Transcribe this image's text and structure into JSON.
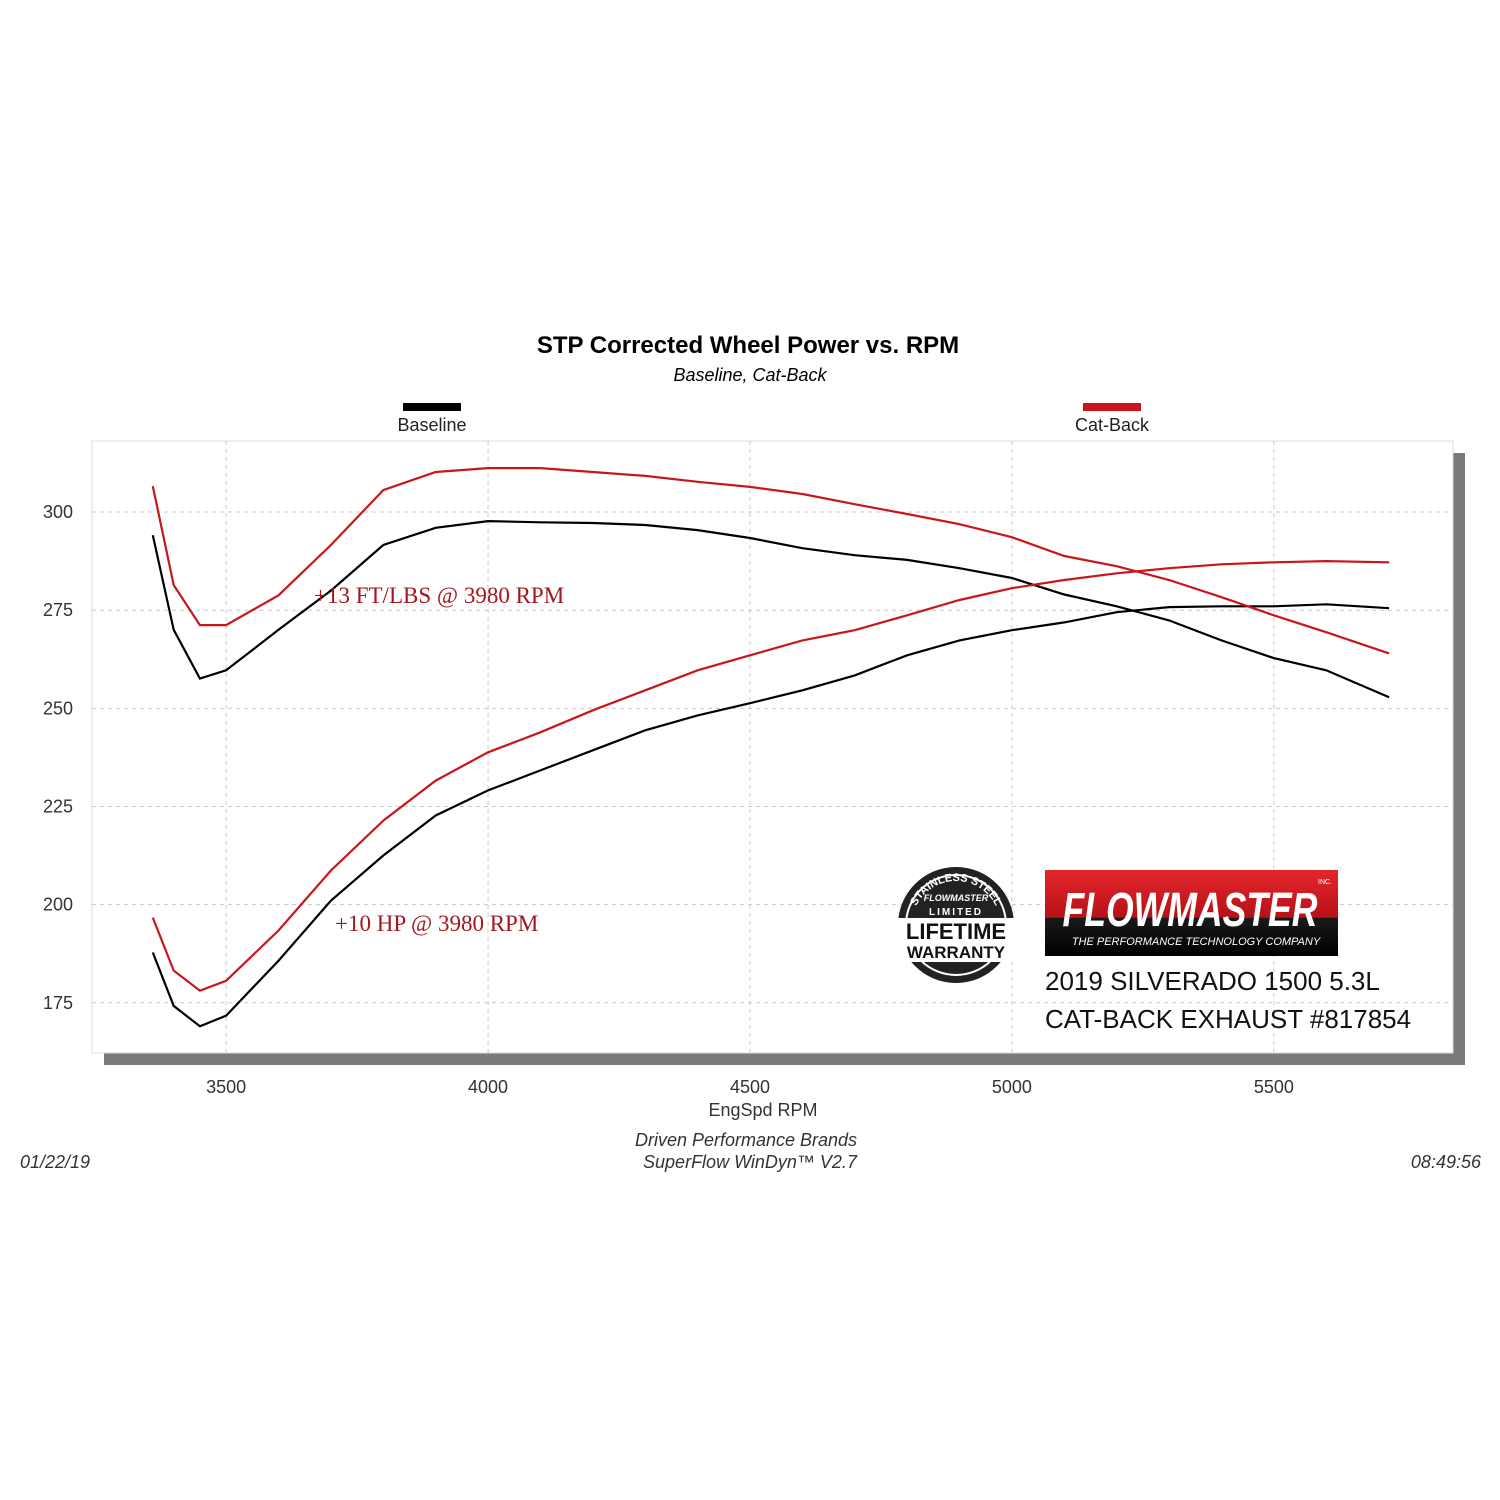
{
  "chart_data": {
    "type": "line",
    "title": "STP Corrected Wheel Power vs. RPM",
    "subtitle": "Baseline, Cat-Back",
    "x_label": "EngSpd  RPM",
    "x": [
      3360,
      3400,
      3450,
      3500,
      3600,
      3700,
      3800,
      3900,
      4000,
      4100,
      4200,
      4300,
      4400,
      4500,
      4600,
      4700,
      4800,
      4900,
      5000,
      5100,
      5200,
      5300,
      5400,
      5500,
      5600,
      5720
    ],
    "series": [
      {
        "name": "Baseline",
        "color": "#000000",
        "torque": [
          294.1,
          270,
          257.6,
          259.7,
          270,
          280,
          291.6,
          296,
          297.7,
          297.4,
          297.2,
          296.7,
          295.4,
          293.4,
          290.8,
          289,
          287.8,
          285.7,
          283.2,
          279,
          276,
          272.4,
          267.3,
          262.8,
          259.7,
          252.8
        ],
        "power": [
          187.8,
          174.2,
          169,
          171.7,
          185.7,
          201,
          212.5,
          222.7,
          229.1,
          234.2,
          239.3,
          244.4,
          248.2,
          251.3,
          254.6,
          258.4,
          263.5,
          267.3,
          269.9,
          271.9,
          274.5,
          275.8,
          276,
          276,
          276.5,
          275.5
        ]
      },
      {
        "name": "Cat-Back",
        "color": "#c8161d",
        "torque": [
          306.6,
          281.4,
          271.2,
          271.2,
          278.8,
          291.6,
          305.6,
          310.2,
          311.2,
          311.2,
          310.2,
          309.2,
          307.7,
          306.4,
          304.6,
          302,
          299.5,
          296.9,
          293.6,
          288.8,
          286.2,
          282.7,
          278.3,
          273.7,
          269.4,
          264
        ],
        "power": [
          196.7,
          183.2,
          178.1,
          180.6,
          193.4,
          208.7,
          221.4,
          231.6,
          238.8,
          243.9,
          249.5,
          254.6,
          259.7,
          263.5,
          267.3,
          269.9,
          273.7,
          277.6,
          280.6,
          282.7,
          284.4,
          285.7,
          286.7,
          287.2,
          287.5,
          287.2
        ]
      }
    ],
    "xlim": [
      3244,
      5842
    ],
    "ylim": [
      162.2,
      318.1
    ],
    "xticks": [
      3500,
      4000,
      4500,
      5000,
      5500
    ],
    "yticks": [
      175,
      200,
      225,
      250,
      275,
      300
    ],
    "grid": true,
    "annotations": {
      "torque_gain": "+13 FT/LBS @ 3980 RPM",
      "power_gain": "+10 HP @ 3980 RPM",
      "color": "#a3171c"
    },
    "footer": {
      "company": "Driven Performance Brands",
      "software": "SuperFlow WinDyn™  V2.7",
      "date": "01/22/19",
      "time": "08:49:56"
    },
    "logo": {
      "brand": "FLOWMASTER",
      "inc": "INC.",
      "tagline": "THE PERFORMANCE TECHNOLOGY COMPANY"
    },
    "badge": {
      "arc": "STAINLESS STEEL",
      "brand": "FLOWMASTER",
      "limited": "LIMITED",
      "lifetime": "LIFETIME",
      "warranty": "WARRANTY"
    },
    "caption": [
      "2019 SILVERADO 1500 5.3L",
      "CAT-BACK EXHAUST #817854"
    ]
  }
}
